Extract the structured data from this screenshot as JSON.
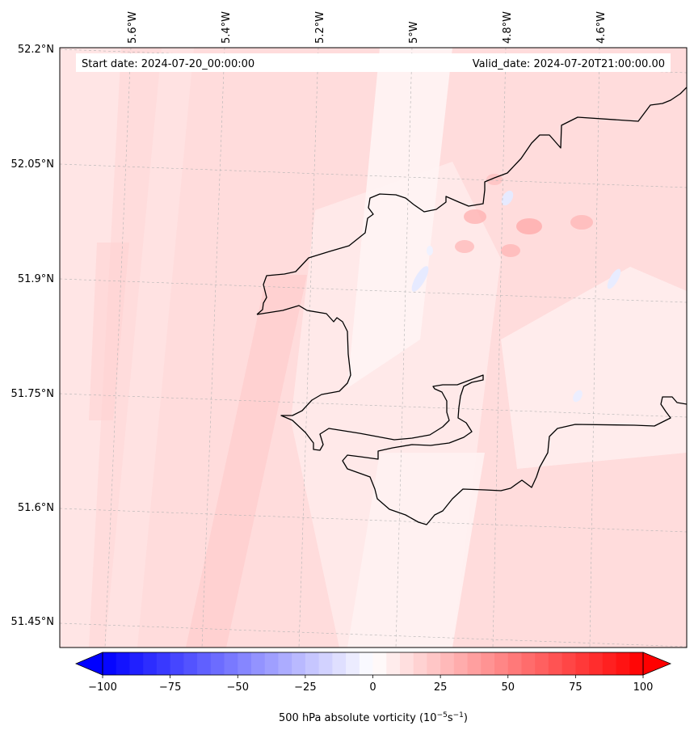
{
  "map": {
    "start_date": "Start date: 2024-07-20_00:00:00",
    "valid_date": "Valid_date: 2024-07-20T21:00:00.00",
    "lat_labels": [
      "52.2°N",
      "52.05°N",
      "51.9°N",
      "51.75°N",
      "51.6°N",
      "51.45°N"
    ],
    "lon_labels": [
      "5.6°W",
      "5.4°W",
      "5.2°W",
      "5°W",
      "4.8°W",
      "4.6°W"
    ],
    "background_color": "#ffdcdc",
    "coastline_color": "#000000"
  },
  "colorbar": {
    "tick_labels": [
      "−100",
      "−75",
      "−50",
      "−25",
      "0",
      "25",
      "50",
      "75",
      "100"
    ],
    "label_main": "500 hPa absolute vorticity (10",
    "label_exp1": "−5",
    "label_mid": "s",
    "label_exp2": "−1",
    "label_end": ")",
    "vmin": -100,
    "vmax": 100,
    "step": 5,
    "extend": "both",
    "cmap": "bwr"
  }
}
